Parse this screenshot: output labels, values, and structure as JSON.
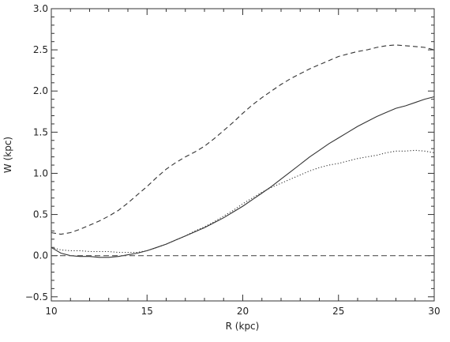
{
  "chart_data": {
    "type": "line",
    "title": "",
    "xlabel": "R (kpc)",
    "ylabel": "W (kpc)",
    "xlim": [
      10,
      30
    ],
    "ylim": [
      -0.55,
      3.0
    ],
    "xticks": [
      10,
      15,
      20,
      25,
      30
    ],
    "xtick_labels": [
      "10",
      "15",
      "20",
      "25",
      "30"
    ],
    "yticks": [
      -0.5,
      0.0,
      0.5,
      1.0,
      1.5,
      2.0,
      2.5,
      3.0
    ],
    "ytick_labels": [
      "−0.5",
      "0.0",
      "0.5",
      "1.0",
      "1.5",
      "2.0",
      "2.5",
      "3.0"
    ],
    "grid": false,
    "line_color": "#333333",
    "series": [
      {
        "style": "dashed",
        "x": [
          10,
          10.5,
          11,
          11.5,
          12,
          12.5,
          13,
          13.5,
          14,
          14.5,
          15,
          15.5,
          16,
          16.5,
          17,
          17.5,
          18,
          18.5,
          19,
          19.5,
          20,
          20.5,
          21,
          21.5,
          22,
          22.5,
          23,
          23.5,
          24,
          24.5,
          25,
          25.5,
          26,
          26.5,
          27,
          27.5,
          28,
          28.5,
          29,
          29.5,
          30
        ],
        "y": [
          0.28,
          0.26,
          0.28,
          0.32,
          0.37,
          0.42,
          0.48,
          0.55,
          0.64,
          0.74,
          0.84,
          0.95,
          1.05,
          1.13,
          1.2,
          1.26,
          1.33,
          1.42,
          1.52,
          1.62,
          1.73,
          1.83,
          1.92,
          2.0,
          2.08,
          2.15,
          2.21,
          2.27,
          2.32,
          2.37,
          2.42,
          2.45,
          2.48,
          2.5,
          2.53,
          2.55,
          2.56,
          2.55,
          2.54,
          2.53,
          2.5
        ]
      },
      {
        "style": "solid",
        "x": [
          10,
          10.5,
          11,
          11.5,
          12,
          12.5,
          13,
          13.5,
          14,
          14.5,
          15,
          15.5,
          16,
          16.5,
          17,
          17.5,
          18,
          18.5,
          19,
          19.5,
          20,
          20.5,
          21,
          21.5,
          22,
          22.5,
          23,
          23.5,
          24,
          24.5,
          25,
          25.5,
          26,
          26.5,
          27,
          27.5,
          28,
          28.5,
          29,
          29.5,
          30
        ],
        "y": [
          0.1,
          0.03,
          0.0,
          -0.01,
          -0.01,
          -0.02,
          -0.02,
          -0.01,
          0.01,
          0.03,
          0.06,
          0.1,
          0.14,
          0.19,
          0.24,
          0.29,
          0.34,
          0.4,
          0.46,
          0.53,
          0.6,
          0.68,
          0.76,
          0.84,
          0.93,
          1.02,
          1.11,
          1.2,
          1.28,
          1.36,
          1.43,
          1.5,
          1.57,
          1.63,
          1.69,
          1.74,
          1.79,
          1.82,
          1.86,
          1.9,
          1.93
        ]
      },
      {
        "style": "dotted",
        "x": [
          10,
          10.5,
          11,
          11.5,
          12,
          12.5,
          13,
          13.5,
          14,
          14.5,
          15,
          15.5,
          16,
          16.5,
          17,
          17.5,
          18,
          18.5,
          19,
          19.5,
          20,
          20.5,
          21,
          21.5,
          22,
          22.5,
          23,
          23.5,
          24,
          24.5,
          25,
          25.5,
          26,
          26.5,
          27,
          27.5,
          28,
          28.5,
          29,
          29.5,
          30
        ],
        "y": [
          0.1,
          0.07,
          0.06,
          0.06,
          0.05,
          0.05,
          0.05,
          0.04,
          0.04,
          0.04,
          0.06,
          0.1,
          0.14,
          0.19,
          0.24,
          0.3,
          0.35,
          0.41,
          0.48,
          0.55,
          0.63,
          0.7,
          0.77,
          0.83,
          0.88,
          0.93,
          0.98,
          1.03,
          1.07,
          1.1,
          1.12,
          1.15,
          1.18,
          1.2,
          1.22,
          1.25,
          1.27,
          1.27,
          1.28,
          1.27,
          1.25
        ]
      },
      {
        "style": "dashed-reference",
        "x": [
          10,
          30
        ],
        "y": [
          0.0,
          0.0
        ]
      }
    ]
  }
}
